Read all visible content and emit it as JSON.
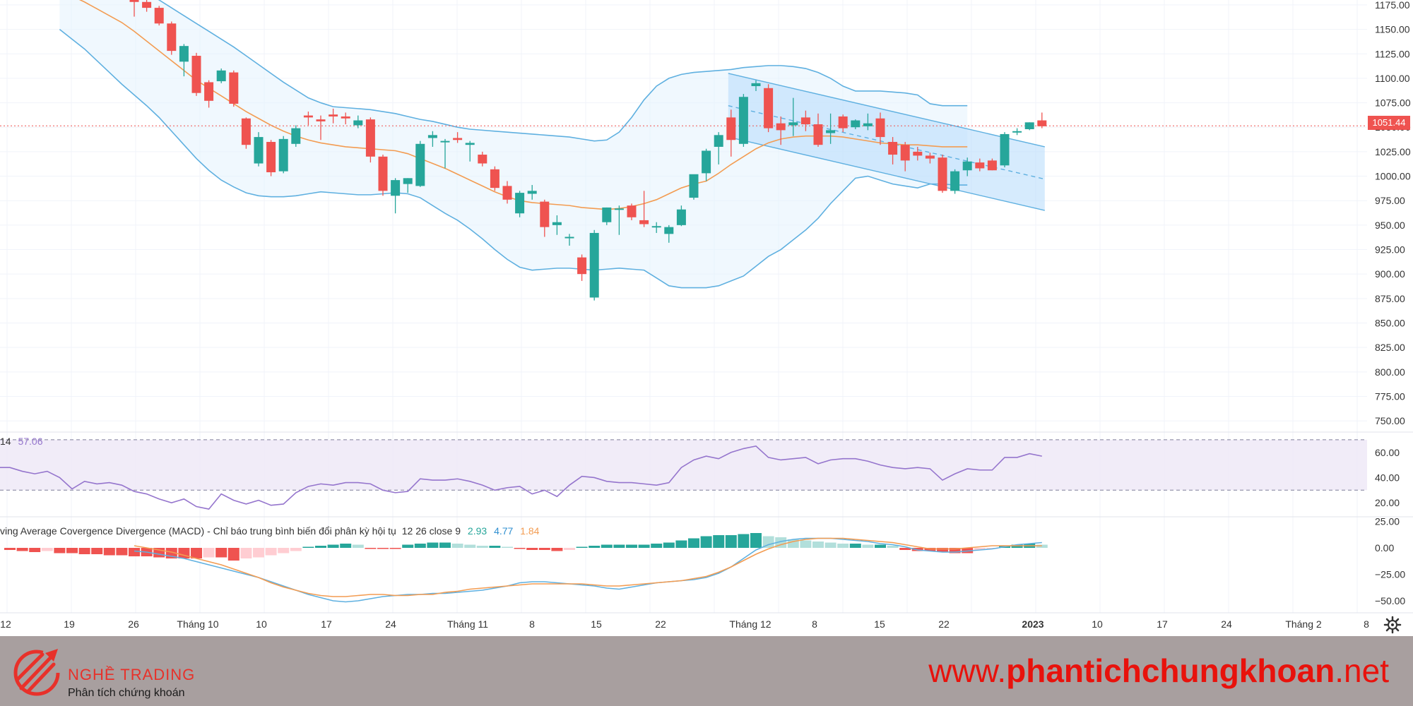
{
  "price_axis_ticks": [
    "1175.00",
    "1150.00",
    "1125.00",
    "1100.00",
    "1075.00",
    "1050.00",
    "1025.00",
    "1000.00",
    "975.00",
    "950.00",
    "925.00",
    "900.00",
    "875.00",
    "850.00",
    "825.00",
    "800.00",
    "775.00",
    "750.00"
  ],
  "current_price": "1051.44",
  "rsi_label": {
    "name": "14",
    "value": "57.06",
    "ticks": [
      "60.00",
      "40.00",
      "20.00"
    ]
  },
  "macd_label": {
    "name": "ving Average Covergence Divergence (MACD) - Chỉ báo trung bình biến đổi phân kỳ hội tụ",
    "params": "12 26 close 9",
    "hist_value": "2.93",
    "macd_value": "4.77",
    "signal_value": "1.84",
    "ticks": [
      "25.00",
      "0.00",
      "−25.00",
      "−50.00"
    ]
  },
  "time_axis_ticks": [
    "12",
    "19",
    "26",
    "Tháng 10",
    "10",
    "17",
    "24",
    "Tháng 11",
    "8",
    "15",
    "22",
    "Tháng 12",
    "8",
    "15",
    "22",
    "2023",
    "10",
    "17",
    "24",
    "Tháng 2",
    "8"
  ],
  "colors": {
    "up": "#26a69a",
    "down": "#ef5350",
    "bb": "#5fb0e0",
    "ma": "#f39c52",
    "rsi": "#9575cd",
    "macd": "#5fb0e0",
    "signal": "#f39c52"
  },
  "icons": {
    "settings": "gear-icon",
    "logo": "trading-arrows-logo-icon"
  },
  "footer": {
    "brand_name": "NGHỀ TRADING",
    "brand_tagline": "Phân tích chứng khoán",
    "site_prefix": "www.",
    "site_bold": "phantichchungkhoan",
    "site_suffix": ".net"
  },
  "chart_data": {
    "type": "candlestick",
    "ylim": [
      740,
      1180
    ],
    "candles": [
      {
        "o": 1180,
        "h": 1183,
        "l": 1163,
        "c": 1178
      },
      {
        "o": 1178,
        "h": 1181,
        "l": 1168,
        "c": 1172
      },
      {
        "o": 1172,
        "h": 1174,
        "l": 1154,
        "c": 1156
      },
      {
        "o": 1156,
        "h": 1158,
        "l": 1124,
        "c": 1128
      },
      {
        "o": 1117,
        "h": 1135,
        "l": 1102,
        "c": 1133
      },
      {
        "o": 1123,
        "h": 1126,
        "l": 1082,
        "c": 1085
      },
      {
        "o": 1096,
        "h": 1098,
        "l": 1070,
        "c": 1077
      },
      {
        "o": 1097,
        "h": 1110,
        "l": 1095,
        "c": 1108
      },
      {
        "o": 1106,
        "h": 1108,
        "l": 1071,
        "c": 1074
      },
      {
        "o": 1059,
        "h": 1060,
        "l": 1028,
        "c": 1032
      },
      {
        "o": 1013,
        "h": 1045,
        "l": 1010,
        "c": 1040
      },
      {
        "o": 1035,
        "h": 1037,
        "l": 1000,
        "c": 1004
      },
      {
        "o": 1005,
        "h": 1041,
        "l": 1003,
        "c": 1038
      },
      {
        "o": 1033,
        "h": 1052,
        "l": 1030,
        "c": 1049
      },
      {
        "o": 1062,
        "h": 1066,
        "l": 1052,
        "c": 1060
      },
      {
        "o": 1058,
        "h": 1062,
        "l": 1037,
        "c": 1056
      },
      {
        "o": 1063,
        "h": 1069,
        "l": 1054,
        "c": 1061
      },
      {
        "o": 1061,
        "h": 1065,
        "l": 1053,
        "c": 1059
      },
      {
        "o": 1052,
        "h": 1062,
        "l": 1049,
        "c": 1057
      },
      {
        "o": 1058,
        "h": 1060,
        "l": 1014,
        "c": 1020
      },
      {
        "o": 1020,
        "h": 1022,
        "l": 980,
        "c": 985
      },
      {
        "o": 980,
        "h": 998,
        "l": 962,
        "c": 996
      },
      {
        "o": 992,
        "h": 998,
        "l": 983,
        "c": 998
      },
      {
        "o": 990,
        "h": 1036,
        "l": 989,
        "c": 1033
      },
      {
        "o": 1039,
        "h": 1046,
        "l": 1030,
        "c": 1042
      },
      {
        "o": 1036,
        "h": 1038,
        "l": 1008,
        "c": 1036
      },
      {
        "o": 1039,
        "h": 1045,
        "l": 1034,
        "c": 1037
      },
      {
        "o": 1032,
        "h": 1036,
        "l": 1015,
        "c": 1034
      },
      {
        "o": 1022,
        "h": 1025,
        "l": 1010,
        "c": 1013
      },
      {
        "o": 1007,
        "h": 1010,
        "l": 985,
        "c": 988
      },
      {
        "o": 990,
        "h": 995,
        "l": 972,
        "c": 976
      },
      {
        "o": 962,
        "h": 985,
        "l": 958,
        "c": 983
      },
      {
        "o": 982,
        "h": 991,
        "l": 976,
        "c": 985
      },
      {
        "o": 974,
        "h": 976,
        "l": 938,
        "c": 948
      },
      {
        "o": 950,
        "h": 960,
        "l": 940,
        "c": 953
      },
      {
        "o": 937,
        "h": 941,
        "l": 929,
        "c": 938
      },
      {
        "o": 917,
        "h": 920,
        "l": 893,
        "c": 900
      },
      {
        "o": 876,
        "h": 945,
        "l": 873,
        "c": 942
      },
      {
        "o": 953,
        "h": 968,
        "l": 950,
        "c": 968
      },
      {
        "o": 967,
        "h": 970,
        "l": 940,
        "c": 967
      },
      {
        "o": 970,
        "h": 972,
        "l": 955,
        "c": 958
      },
      {
        "o": 955,
        "h": 985,
        "l": 948,
        "c": 951
      },
      {
        "o": 949,
        "h": 953,
        "l": 942,
        "c": 949
      },
      {
        "o": 941,
        "h": 950,
        "l": 932,
        "c": 948
      },
      {
        "o": 950,
        "h": 970,
        "l": 949,
        "c": 966
      },
      {
        "o": 978,
        "h": 1000,
        "l": 976,
        "c": 1002
      },
      {
        "o": 1003,
        "h": 1028,
        "l": 995,
        "c": 1026
      },
      {
        "o": 1030,
        "h": 1045,
        "l": 1012,
        "c": 1042
      },
      {
        "o": 1060,
        "h": 1068,
        "l": 1020,
        "c": 1037
      },
      {
        "o": 1033,
        "h": 1084,
        "l": 1030,
        "c": 1081
      },
      {
        "o": 1092,
        "h": 1098,
        "l": 1087,
        "c": 1095
      },
      {
        "o": 1090,
        "h": 1094,
        "l": 1045,
        "c": 1049
      },
      {
        "o": 1054,
        "h": 1061,
        "l": 1032,
        "c": 1047
      },
      {
        "o": 1052,
        "h": 1080,
        "l": 1041,
        "c": 1055
      },
      {
        "o": 1060,
        "h": 1067,
        "l": 1046,
        "c": 1053
      },
      {
        "o": 1053,
        "h": 1064,
        "l": 1030,
        "c": 1032
      },
      {
        "o": 1044,
        "h": 1064,
        "l": 1033,
        "c": 1047
      },
      {
        "o": 1061,
        "h": 1063,
        "l": 1045,
        "c": 1049
      },
      {
        "o": 1050,
        "h": 1058,
        "l": 1048,
        "c": 1057
      },
      {
        "o": 1051,
        "h": 1064,
        "l": 1047,
        "c": 1054
      },
      {
        "o": 1059,
        "h": 1065,
        "l": 1032,
        "c": 1040
      },
      {
        "o": 1035,
        "h": 1040,
        "l": 1012,
        "c": 1022
      },
      {
        "o": 1032,
        "h": 1035,
        "l": 1005,
        "c": 1016
      },
      {
        "o": 1025,
        "h": 1030,
        "l": 1016,
        "c": 1021
      },
      {
        "o": 1021,
        "h": 1024,
        "l": 1013,
        "c": 1018
      },
      {
        "o": 1019,
        "h": 1022,
        "l": 983,
        "c": 985
      },
      {
        "o": 985,
        "h": 1007,
        "l": 982,
        "c": 1005
      },
      {
        "o": 1006,
        "h": 1019,
        "l": 1000,
        "c": 1015
      },
      {
        "o": 1014,
        "h": 1018,
        "l": 1005,
        "c": 1008
      },
      {
        "o": 1016,
        "h": 1018,
        "l": 1006,
        "c": 1006
      },
      {
        "o": 1011,
        "h": 1045,
        "l": 1009,
        "c": 1043
      },
      {
        "o": 1045,
        "h": 1049,
        "l": 1042,
        "c": 1046
      },
      {
        "o": 1048,
        "h": 1055,
        "l": 1047,
        "c": 1055
      },
      {
        "o": 1057,
        "h": 1065,
        "l": 1049,
        "c": 1051
      }
    ],
    "bb_upper": [
      1240,
      1232,
      1224,
      1218,
      1210,
      1204,
      1196,
      1188,
      1180,
      1172,
      1164,
      1156,
      1148,
      1140,
      1132,
      1123,
      1114,
      1105,
      1096,
      1088,
      1080,
      1075,
      1071,
      1070,
      1069,
      1068,
      1066,
      1064,
      1061,
      1058,
      1056,
      1053,
      1050,
      1048,
      1047,
      1046,
      1045,
      1044,
      1043,
      1042,
      1041,
      1040,
      1038,
      1036,
      1037,
      1045,
      1060,
      1078,
      1092,
      1100,
      1104,
      1106,
      1107,
      1108,
      1109,
      1111,
      1112,
      1113,
      1113,
      1112,
      1110,
      1106,
      1100,
      1092,
      1087,
      1087,
      1087,
      1086,
      1085,
      1083,
      1074,
      1072,
      1072,
      1072
    ],
    "bb_mid": [
      1190,
      1184,
      1178,
      1171,
      1164,
      1157,
      1148,
      1138,
      1128,
      1118,
      1108,
      1098,
      1090,
      1082,
      1074,
      1066,
      1059,
      1052,
      1046,
      1041,
      1037,
      1034,
      1032,
      1030,
      1029,
      1028,
      1027,
      1026,
      1023,
      1018,
      1013,
      1008,
      1002,
      996,
      990,
      984,
      979,
      975,
      973,
      972,
      971,
      970,
      968,
      967,
      966,
      967,
      969,
      972,
      976,
      982,
      988,
      992,
      995,
      1003,
      1012,
      1020,
      1028,
      1034,
      1038,
      1040,
      1041,
      1041,
      1041,
      1040,
      1038,
      1036,
      1034,
      1033,
      1032,
      1032,
      1031,
      1030,
      1030,
      1030
    ],
    "bb_lower": [
      1150,
      1140,
      1130,
      1118,
      1106,
      1094,
      1083,
      1072,
      1060,
      1046,
      1032,
      1018,
      1006,
      996,
      989,
      983,
      980,
      979,
      979,
      980,
      982,
      984,
      983,
      982,
      981,
      981,
      982,
      983,
      982,
      978,
      970,
      962,
      955,
      946,
      936,
      925,
      915,
      907,
      904,
      905,
      906,
      906,
      905,
      904,
      905,
      906,
      905,
      904,
      896,
      888,
      886,
      886,
      886,
      888,
      893,
      898,
      908,
      918,
      925,
      935,
      945,
      957,
      972,
      985,
      998,
      1000,
      996,
      992,
      990,
      988,
      992,
      992,
      991,
      991
    ],
    "channel": {
      "upper_start": 1105,
      "upper_end": 1030,
      "lower_start": 1040,
      "lower_end": 965,
      "mid_start": 1072,
      "mid_end": 997,
      "start_index": 48,
      "end_index": 73
    },
    "rsi": [
      48,
      48,
      45,
      43,
      45,
      40,
      31,
      37,
      35,
      36,
      34,
      29,
      27,
      23,
      20,
      23,
      17,
      15,
      27,
      22,
      19,
      22,
      18,
      19,
      28,
      33,
      35,
      34,
      36,
      36,
      35,
      30,
      28,
      29,
      39,
      38,
      38,
      39,
      37,
      34,
      30,
      32,
      33,
      27,
      30,
      25,
      34,
      41,
      40,
      37,
      36,
      36,
      35,
      34,
      36,
      48,
      54,
      57,
      55,
      60,
      63,
      65,
      56,
      54,
      55,
      56,
      51,
      54,
      55,
      55,
      53,
      50,
      48,
      47,
      48,
      47,
      38,
      43,
      47,
      46,
      46,
      56,
      56,
      59,
      57
    ],
    "rsi_bands": [
      70,
      30
    ],
    "rsi_ylim": [
      10,
      75
    ],
    "macd_hist": [
      -2,
      -3,
      -4,
      -3,
      -5,
      -5,
      -6,
      -6,
      -7,
      -7,
      -8,
      -8,
      -9,
      -10,
      -10,
      -10,
      -9,
      -9,
      -12,
      -10,
      -9,
      -7,
      -5,
      -3,
      1,
      2,
      3,
      4,
      3,
      -1,
      -1,
      -1,
      3,
      4,
      5,
      5,
      4,
      3,
      2,
      2,
      1,
      -1,
      -2,
      -2,
      -3,
      -2,
      1,
      2,
      3,
      3,
      3,
      3,
      4,
      5,
      7,
      9,
      11,
      12,
      12,
      13,
      14,
      11,
      10,
      8,
      7,
      6,
      5,
      4,
      4,
      3,
      3,
      2,
      -2,
      -3,
      -3,
      -4,
      -5,
      -5,
      -2,
      -1,
      2,
      3,
      4,
      3
    ],
    "macd_line": [
      -3,
      -4,
      -6,
      -8,
      -10,
      -13,
      -16,
      -19,
      -22,
      -25,
      -28,
      -32,
      -36,
      -40,
      -44,
      -47,
      -50,
      -51,
      -50,
      -48,
      -46,
      -45,
      -44,
      -44,
      -43,
      -43,
      -42,
      -41,
      -40,
      -38,
      -36,
      -33,
      -32,
      -32,
      -33,
      -34,
      -35,
      -36,
      -38,
      -39,
      -37,
      -35,
      -33,
      -32,
      -31,
      -30,
      -28,
      -24,
      -18,
      -10,
      -2,
      3,
      6,
      8,
      9,
      9,
      9,
      8,
      7,
      6,
      4,
      3,
      1,
      -2,
      -3,
      -4,
      -4,
      -3,
      -2,
      -1,
      1,
      3,
      4,
      5
    ],
    "signal_line": [
      2,
      0,
      -2,
      -4,
      -7,
      -10,
      -13,
      -16,
      -20,
      -24,
      -28,
      -33,
      -37,
      -40,
      -43,
      -45,
      -46,
      -46,
      -45,
      -44,
      -44,
      -45,
      -45,
      -44,
      -44,
      -42,
      -41,
      -39,
      -38,
      -37,
      -36,
      -35,
      -34,
      -34,
      -34,
      -34,
      -34,
      -35,
      -36,
      -36,
      -35,
      -34,
      -33,
      -32,
      -31,
      -29,
      -27,
      -23,
      -18,
      -12,
      -6,
      -1,
      3,
      6,
      8,
      9,
      9,
      9,
      8,
      7,
      6,
      5,
      3,
      1,
      -1,
      -1,
      -1,
      0,
      1,
      2,
      2,
      2,
      2,
      2
    ],
    "macd_ylim": [
      -60,
      28
    ]
  }
}
